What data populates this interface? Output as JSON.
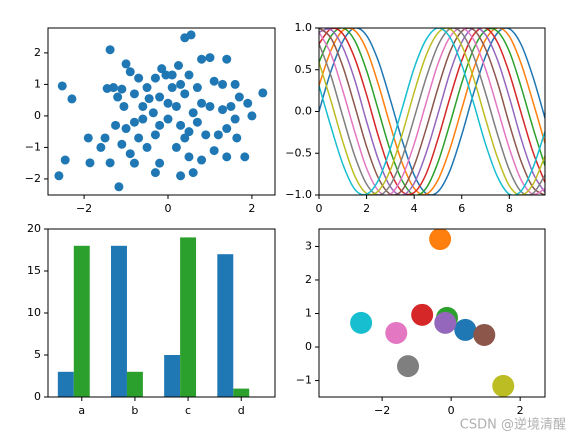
{
  "chart_data": [
    {
      "type": "scatter",
      "color": "#1f77b4",
      "xlim": [
        -2.86,
        2.55
      ],
      "ylim": [
        -2.51,
        2.79
      ],
      "xticks": [
        {
          "value": -2,
          "label": "−2"
        },
        0,
        2
      ],
      "yticks": [
        {
          "value": -2,
          "label": "−2"
        },
        {
          "value": -1,
          "label": "−1"
        },
        0,
        1,
        2
      ],
      "x": [
        -2.52,
        -2.29,
        -2.45,
        -2.6,
        -1.86,
        -1.38,
        -1.38,
        -1.17,
        0.4,
        0.55,
        2.26,
        1.83,
        1.64,
        -1.45,
        -1.3,
        -1.1,
        -1.0,
        -0.9,
        -1.05,
        -1.2,
        -0.8,
        -0.6,
        -0.5,
        -0.45,
        -0.3,
        -0.15,
        -0.05,
        0.1,
        0.25,
        0.3,
        0.5,
        0.8,
        1.0,
        1.4,
        1.1,
        1.3,
        1.6,
        1.7,
        1.9,
        1.5,
        1.3,
        1.0,
        0.8,
        0.6,
        0.4,
        0.2,
        0.0,
        -0.2,
        -0.35,
        -0.6,
        -0.8,
        -1.0,
        -1.25,
        -1.5,
        -1.9,
        -1.1,
        -0.9,
        -0.7,
        -0.5,
        -0.2,
        0.0,
        0.3,
        0.5,
        0.7,
        0.9,
        1.2,
        1.4,
        1.1,
        1.4,
        0.8,
        0.5,
        0.2,
        -0.2,
        -0.3,
        0.3,
        0.6,
        -0.8,
        -1.6,
        1.6,
        2.0,
        0.1,
        -0.7,
        0.7,
        -0.3,
        0.4
      ],
      "y": [
        0.95,
        0.54,
        -1.4,
        -1.9,
        -1.49,
        -1.49,
        2.1,
        -2.25,
        2.48,
        2.57,
        0.73,
        -1.3,
        -0.7,
        0.87,
        0.9,
        0.85,
        1.65,
        1.4,
        0.3,
        0.6,
        0.7,
        0.3,
        0.9,
        0.55,
        1.2,
        1.5,
        1.3,
        1.3,
        1.6,
        1.0,
        1.3,
        1.8,
        1.85,
        1.8,
        1.1,
        1.0,
        1.0,
        0.6,
        0.4,
        0.3,
        0.2,
        0.3,
        0.4,
        0.1,
        0.7,
        0.3,
        0.4,
        0.6,
        0.1,
        -0.1,
        -0.2,
        -0.4,
        -0.3,
        -0.7,
        -0.7,
        -0.9,
        -1.2,
        -0.7,
        -1.0,
        -0.3,
        -0.1,
        -0.3,
        -0.5,
        -0.2,
        -0.6,
        -0.6,
        -0.4,
        -1.1,
        -1.3,
        -1.4,
        -1.3,
        -1.0,
        -1.5,
        -1.8,
        -1.9,
        -1.8,
        -1.5,
        -1.0,
        -0.1,
        0.0,
        0.9,
        1.2,
        0.9,
        -0.6,
        -0.7
      ]
    },
    {
      "type": "line",
      "xlim": [
        0,
        9.5
      ],
      "ylim": [
        -1,
        1
      ],
      "xticks": [
        0,
        2,
        4,
        6,
        8
      ],
      "yticks": [
        {
          "value": -1,
          "label": "−1.0"
        },
        {
          "value": -0.5,
          "label": "−0.5"
        },
        {
          "value": 0,
          "label": "0.0"
        },
        {
          "value": 0.5,
          "label": "0.5"
        },
        {
          "value": 1,
          "label": "1.0"
        }
      ],
      "x": [
        0,
        0.5,
        1,
        1.5,
        2,
        2.5,
        3,
        3.5,
        4,
        4.5,
        5,
        5.5,
        6,
        6.5,
        7,
        7.5,
        8,
        8.5,
        9,
        9.5
      ],
      "series": [
        {
          "color": "#1f77b4",
          "values": [
            0,
            0.48,
            0.84,
            1.0,
            0.91,
            0.6,
            0.14,
            -0.35,
            -0.76,
            -0.98,
            -0.96,
            -0.71,
            -0.28,
            0.22,
            0.66,
            0.94,
            0.99,
            0.8,
            0.41,
            -0.08
          ]
        },
        {
          "color": "#ff7f0e",
          "values": [
            0.31,
            0.73,
            0.97,
            0.97,
            0.74,
            0.32,
            -0.17,
            -0.62,
            -0.92,
            -0.99,
            -0.82,
            -0.45,
            0.03,
            0.51,
            0.86,
            1.0,
            0.9,
            0.57,
            0.11,
            -0.38
          ]
        },
        {
          "color": "#2ca02c",
          "values": [
            0.59,
            0.9,
            1.0,
            0.85,
            0.49,
            0.01,
            -0.47,
            -0.83,
            -1.0,
            -0.92,
            -0.61,
            -0.15,
            0.34,
            0.75,
            0.97,
            0.96,
            0.72,
            0.29,
            -0.2,
            -0.65
          ]
        },
        {
          "color": "#d62728",
          "values": [
            0.81,
            0.99,
            0.93,
            0.64,
            0.2,
            -0.3,
            -0.72,
            -0.96,
            -0.97,
            -0.75,
            -0.33,
            0.16,
            0.61,
            0.92,
            1.0,
            0.83,
            0.46,
            -0.02,
            -0.49,
            -0.85
          ]
        },
        {
          "color": "#9467bd",
          "values": [
            0.95,
            0.98,
            0.77,
            0.38,
            -0.12,
            -0.58,
            -0.9,
            -1.0,
            -0.86,
            -0.5,
            -0.03,
            0.46,
            0.83,
            1.0,
            0.92,
            0.62,
            0.17,
            -0.33,
            -0.74,
            -0.97
          ]
        },
        {
          "color": "#8c564b",
          "values": [
            1.0,
            0.88,
            0.54,
            0.07,
            -0.42,
            -0.8,
            -0.99,
            -0.94,
            -0.65,
            -0.21,
            0.28,
            0.71,
            0.96,
            0.98,
            0.75,
            0.35,
            -0.15,
            -0.6,
            -0.91,
            -1.0
          ]
        },
        {
          "color": "#e377c2",
          "values": [
            0.95,
            0.69,
            0.25,
            -0.24,
            -0.68,
            -0.95,
            -0.99,
            -0.78,
            -0.39,
            0.1,
            0.57,
            0.89,
            1.0,
            0.86,
            0.51,
            0.04,
            -0.44,
            -0.82,
            -0.99,
            -0.92
          ]
        },
        {
          "color": "#7f7f7f",
          "values": [
            0.81,
            0.43,
            -0.06,
            -0.53,
            -0.87,
            -1.0,
            -0.88,
            -0.55,
            -0.08,
            0.4,
            0.79,
            0.99,
            0.94,
            0.66,
            0.22,
            -0.27,
            -0.7,
            -0.96,
            -0.98,
            -0.76
          ]
        },
        {
          "color": "#bcbd22",
          "values": [
            0.59,
            0.13,
            -0.36,
            -0.77,
            -0.98,
            -0.95,
            -0.7,
            -0.27,
            0.23,
            0.67,
            0.94,
            0.99,
            0.79,
            0.4,
            -0.09,
            -0.55,
            -0.89,
            -1.0,
            -0.87,
            -0.53
          ]
        },
        {
          "color": "#17becf",
          "values": [
            0.31,
            -0.18,
            -0.63,
            -0.93,
            -0.99,
            -0.82,
            -0.44,
            0.04,
            0.52,
            0.86,
            1.0,
            0.89,
            0.56,
            0.1,
            -0.39,
            -0.78,
            -0.99,
            -0.95,
            -0.67,
            -0.24
          ]
        }
      ]
    },
    {
      "type": "bar",
      "ylim": [
        0,
        20
      ],
      "yticks": [
        0,
        5,
        10,
        15,
        20
      ],
      "categories": [
        "a",
        "b",
        "c",
        "d"
      ],
      "series": [
        {
          "color": "#1f77b4",
          "values": [
            3,
            18,
            5,
            17
          ]
        },
        {
          "color": "#2ca02c",
          "values": [
            18,
            3,
            19,
            1
          ]
        }
      ]
    },
    {
      "type": "scatter",
      "xlim": [
        -3.83,
        2.72
      ],
      "ylim": [
        -1.49,
        3.52
      ],
      "xticks": [
        {
          "value": -2,
          "label": "−2"
        },
        0,
        2
      ],
      "yticks": [
        {
          "value": -1,
          "label": "−1"
        },
        0,
        1,
        2,
        3
      ],
      "x": [
        0.41,
        -0.32,
        -0.12,
        -0.84,
        -0.17,
        0.96,
        -1.59,
        -1.25,
        1.51,
        -2.61
      ],
      "y": [
        0.51,
        3.22,
        0.87,
        0.96,
        0.72,
        0.36,
        0.42,
        -0.57,
        -1.16,
        0.72
      ],
      "colors": [
        "#1f77b4",
        "#ff7f0e",
        "#2ca02c",
        "#d62728",
        "#9467bd",
        "#8c564b",
        "#e377c2",
        "#7f7f7f",
        "#bcbd22",
        "#17becf"
      ]
    }
  ],
  "watermark": "CSDN @逆境清醒"
}
